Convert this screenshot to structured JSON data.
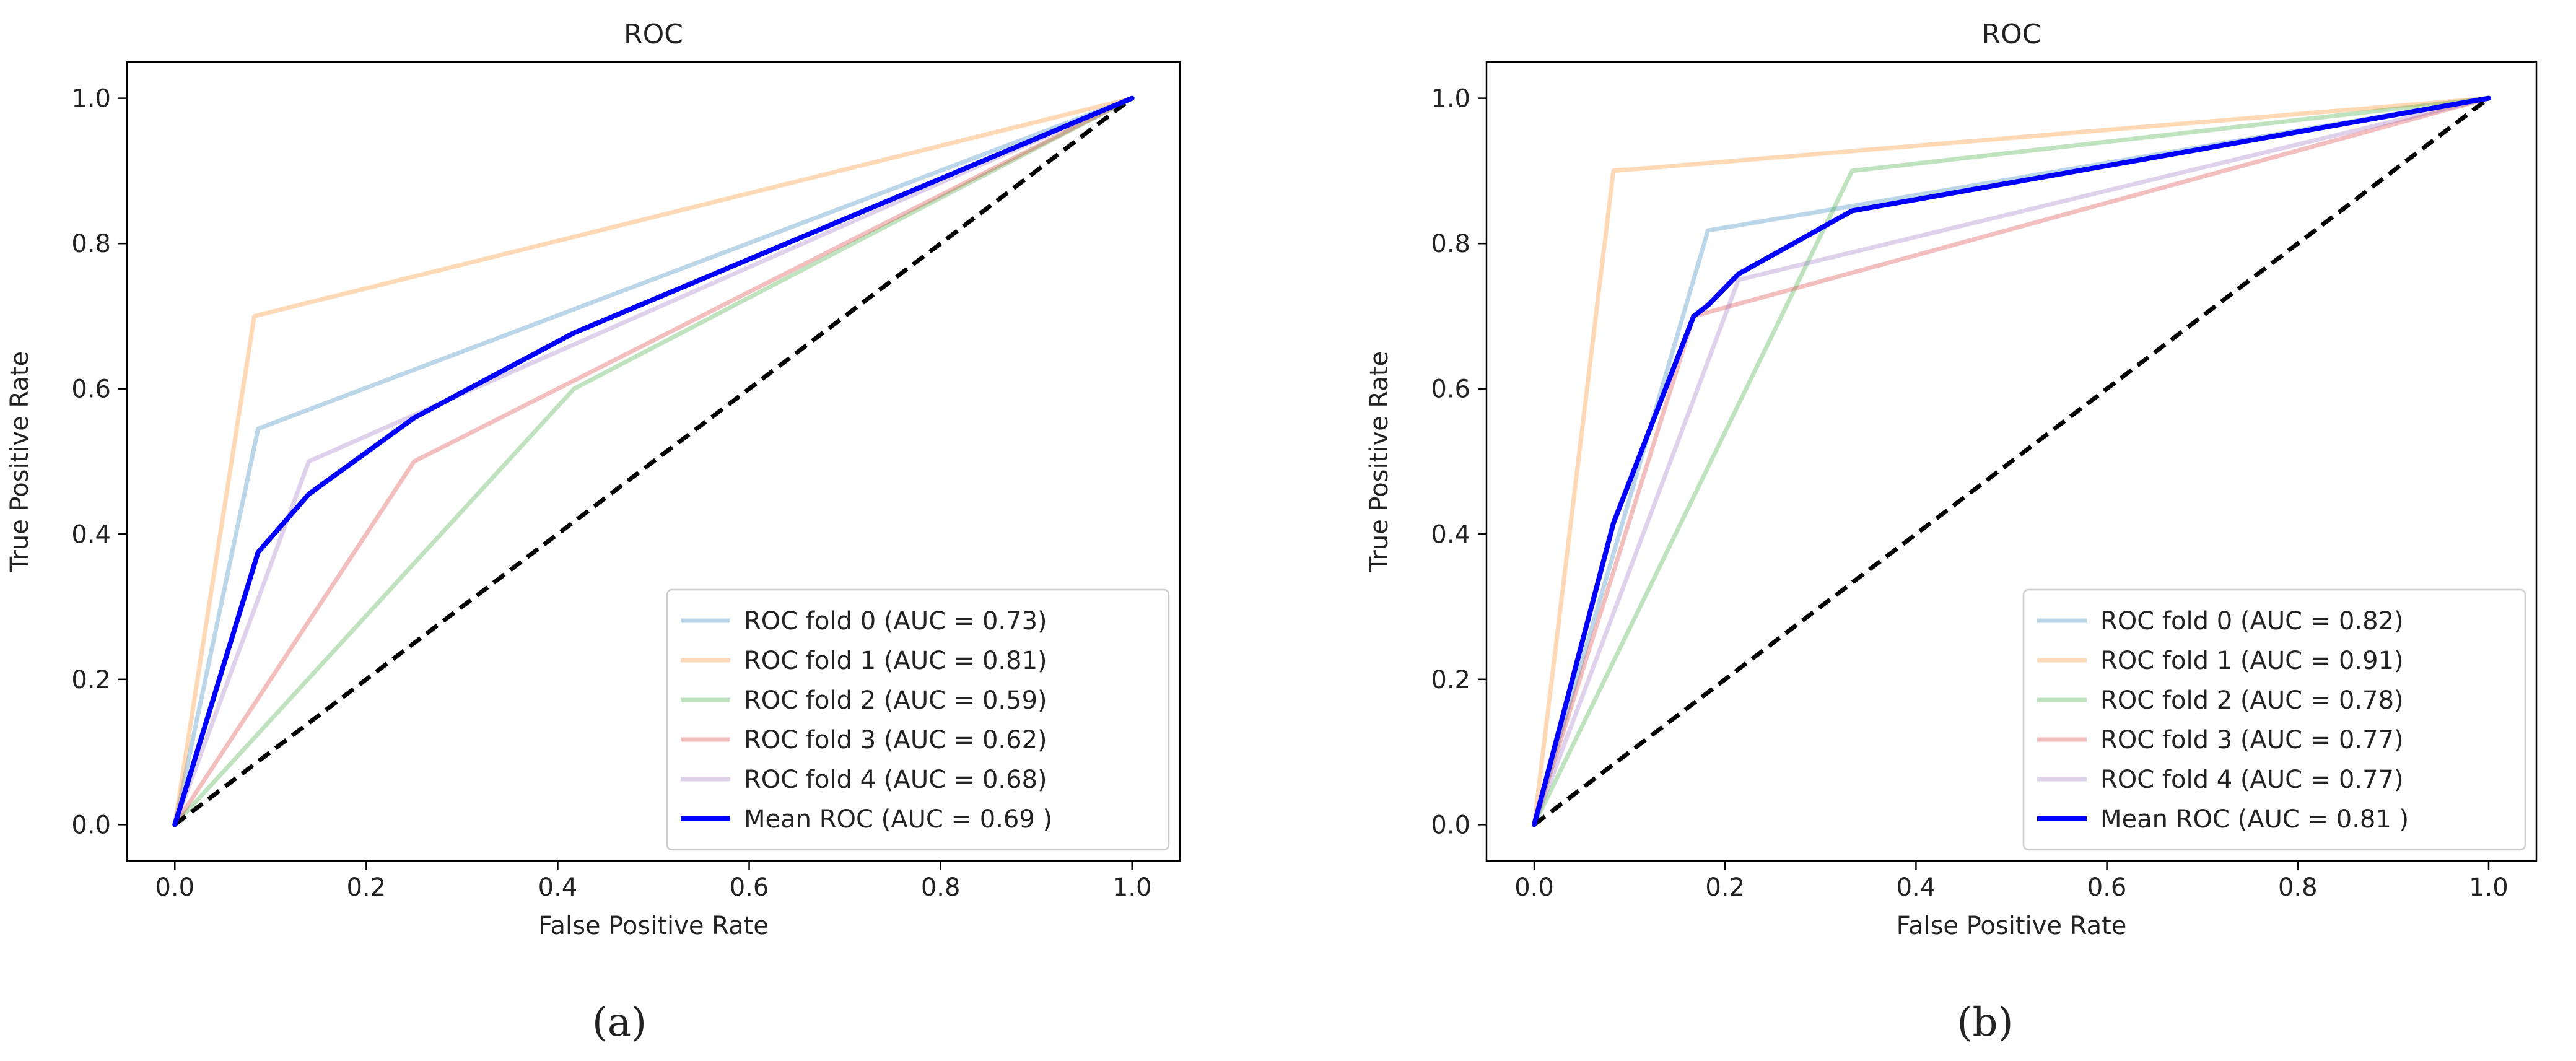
{
  "chart_data": [
    {
      "panel_label": "(a)",
      "panel_letter": "a",
      "type": "line",
      "title": "ROC",
      "xlabel": "False Positive Rate",
      "ylabel": "True Positive Rate",
      "xlim": [
        -0.05,
        1.05
      ],
      "ylim": [
        -0.05,
        1.05
      ],
      "xticks": [
        0.0,
        0.2,
        0.4,
        0.6,
        0.8,
        1.0
      ],
      "xtick_labels": [
        "0.0",
        "0.2",
        "0.4",
        "0.6",
        "0.8",
        "1.0"
      ],
      "yticks": [
        0.0,
        0.2,
        0.4,
        0.6,
        0.8,
        1.0
      ],
      "ytick_labels": [
        "0.0",
        "0.2",
        "0.4",
        "0.6",
        "0.8",
        "1.0"
      ],
      "legend_position": "lower-right",
      "series": [
        {
          "name": "ROC fold 0 (AUC = 0.73)",
          "color": "#1f77b4",
          "opacity": 0.3,
          "x": [
            0.0,
            0.087,
            1.0
          ],
          "y": [
            0.0,
            0.545,
            1.0
          ]
        },
        {
          "name": "ROC fold 1 (AUC = 0.81)",
          "color": "#ff7f0e",
          "opacity": 0.3,
          "x": [
            0.0,
            0.083,
            1.0
          ],
          "y": [
            0.0,
            0.7,
            1.0
          ]
        },
        {
          "name": "ROC fold 2 (AUC = 0.59)",
          "color": "#2ca02c",
          "opacity": 0.3,
          "x": [
            0.0,
            0.417,
            1.0
          ],
          "y": [
            0.0,
            0.6,
            1.0
          ]
        },
        {
          "name": "ROC fold 3 (AUC = 0.62)",
          "color": "#d62728",
          "opacity": 0.3,
          "x": [
            0.0,
            0.25,
            1.0
          ],
          "y": [
            0.0,
            0.5,
            1.0
          ]
        },
        {
          "name": "ROC fold 4 (AUC = 0.68)",
          "color": "#9467bd",
          "opacity": 0.3,
          "x": [
            0.0,
            0.14,
            1.0
          ],
          "y": [
            0.0,
            0.5,
            1.0
          ]
        },
        {
          "name": "Mean ROC (AUC = 0.69 )",
          "color": "#0000ff",
          "opacity": 1.0,
          "mean": true,
          "x": [
            0.0,
            0.087,
            0.14,
            0.25,
            0.417,
            1.0
          ],
          "y": [
            0.0,
            0.375,
            0.455,
            0.56,
            0.677,
            1.0
          ]
        }
      ],
      "chance_line": {
        "x": [
          0.0,
          1.0
        ],
        "y": [
          0.0,
          1.0
        ],
        "color": "#000000",
        "style": "dashed"
      }
    },
    {
      "panel_label": "(b)",
      "panel_letter": "b",
      "type": "line",
      "title": "ROC",
      "xlabel": "False Positive Rate",
      "ylabel": "True Positive Rate",
      "xlim": [
        -0.05,
        1.05
      ],
      "ylim": [
        -0.05,
        1.05
      ],
      "xticks": [
        0.0,
        0.2,
        0.4,
        0.6,
        0.8,
        1.0
      ],
      "xtick_labels": [
        "0.0",
        "0.2",
        "0.4",
        "0.6",
        "0.8",
        "1.0"
      ],
      "yticks": [
        0.0,
        0.2,
        0.4,
        0.6,
        0.8,
        1.0
      ],
      "ytick_labels": [
        "0.0",
        "0.2",
        "0.4",
        "0.6",
        "0.8",
        "1.0"
      ],
      "legend_position": "lower-right",
      "series": [
        {
          "name": "ROC fold 0 (AUC = 0.82)",
          "color": "#1f77b4",
          "opacity": 0.3,
          "x": [
            0.0,
            0.182,
            1.0
          ],
          "y": [
            0.0,
            0.818,
            1.0
          ]
        },
        {
          "name": "ROC fold 1 (AUC = 0.91)",
          "color": "#ff7f0e",
          "opacity": 0.3,
          "x": [
            0.0,
            0.083,
            1.0
          ],
          "y": [
            0.0,
            0.9,
            1.0
          ]
        },
        {
          "name": "ROC fold 2 (AUC = 0.78)",
          "color": "#2ca02c",
          "opacity": 0.3,
          "x": [
            0.0,
            0.333,
            1.0
          ],
          "y": [
            0.0,
            0.9,
            1.0
          ]
        },
        {
          "name": "ROC fold 3 (AUC = 0.77)",
          "color": "#d62728",
          "opacity": 0.3,
          "x": [
            0.0,
            0.167,
            1.0
          ],
          "y": [
            0.0,
            0.7,
            1.0
          ]
        },
        {
          "name": "ROC fold 4 (AUC = 0.77)",
          "color": "#9467bd",
          "opacity": 0.3,
          "x": [
            0.0,
            0.214,
            1.0
          ],
          "y": [
            0.0,
            0.75,
            1.0
          ]
        },
        {
          "name": "Mean ROC (AUC = 0.81 )",
          "color": "#0000ff",
          "opacity": 1.0,
          "mean": true,
          "x": [
            0.0,
            0.083,
            0.167,
            0.182,
            0.214,
            0.333,
            1.0
          ],
          "y": [
            0.0,
            0.415,
            0.7,
            0.715,
            0.758,
            0.845,
            1.0
          ]
        }
      ],
      "chance_line": {
        "x": [
          0.0,
          1.0
        ],
        "y": [
          0.0,
          1.0
        ],
        "color": "#000000",
        "style": "dashed"
      }
    }
  ]
}
